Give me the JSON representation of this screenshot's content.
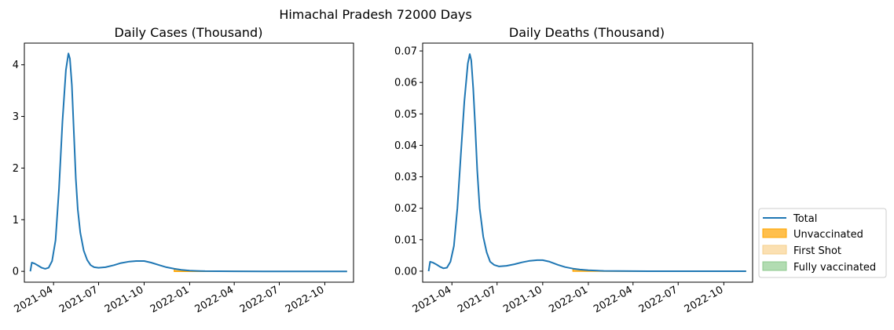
{
  "figure": {
    "suptitle": "Himachal Pradesh 72000 Days"
  },
  "legend": {
    "placement": "right-lower",
    "items": [
      {
        "label": "Total",
        "kind": "line",
        "color": "#1f77b4"
      },
      {
        "label": "Unvaccinated",
        "kind": "area",
        "color": "#ffbf4c"
      },
      {
        "label": "First Shot",
        "kind": "area",
        "color": "#fbe0b2"
      },
      {
        "label": "Fully vaccinated",
        "kind": "area",
        "color": "#b2dcb2"
      }
    ]
  },
  "chart_data": [
    {
      "type": "line",
      "title": "Daily Cases (Thousand)",
      "xlabel": "",
      "ylabel": "",
      "x_type": "date",
      "xlim": [
        "2021-02-01",
        "2022-11-28"
      ],
      "ylim": [
        -0.21,
        4.42
      ],
      "x_ticks": [
        "2021-04",
        "2021-07",
        "2021-10",
        "2022-01",
        "2022-04",
        "2022-07",
        "2022-10"
      ],
      "y_ticks": [
        0,
        1,
        2,
        3,
        4
      ],
      "series": [
        {
          "name": "Total",
          "color": "#1f77b4",
          "points": [
            [
              "2021-02-13",
              0.0
            ],
            [
              "2021-02-16",
              0.17
            ],
            [
              "2021-02-22",
              0.15
            ],
            [
              "2021-03-01",
              0.11
            ],
            [
              "2021-03-08",
              0.07
            ],
            [
              "2021-03-15",
              0.05
            ],
            [
              "2021-03-22",
              0.07
            ],
            [
              "2021-03-29",
              0.2
            ],
            [
              "2021-04-05",
              0.6
            ],
            [
              "2021-04-12",
              1.6
            ],
            [
              "2021-04-19",
              2.9
            ],
            [
              "2021-04-26",
              3.9
            ],
            [
              "2021-05-01",
              4.22
            ],
            [
              "2021-05-04",
              4.12
            ],
            [
              "2021-05-08",
              3.6
            ],
            [
              "2021-05-12",
              2.7
            ],
            [
              "2021-05-16",
              1.8
            ],
            [
              "2021-05-20",
              1.2
            ],
            [
              "2021-05-25",
              0.75
            ],
            [
              "2021-06-01",
              0.4
            ],
            [
              "2021-06-08",
              0.22
            ],
            [
              "2021-06-15",
              0.12
            ],
            [
              "2021-06-22",
              0.08
            ],
            [
              "2021-07-01",
              0.07
            ],
            [
              "2021-07-15",
              0.08
            ],
            [
              "2021-08-01",
              0.12
            ],
            [
              "2021-08-15",
              0.16
            ],
            [
              "2021-09-01",
              0.19
            ],
            [
              "2021-09-15",
              0.2
            ],
            [
              "2021-10-01",
              0.2
            ],
            [
              "2021-10-15",
              0.17
            ],
            [
              "2021-11-01",
              0.12
            ],
            [
              "2021-11-15",
              0.08
            ],
            [
              "2021-12-01",
              0.05
            ],
            [
              "2021-12-15",
              0.03
            ],
            [
              "2022-01-01",
              0.015
            ],
            [
              "2022-01-15",
              0.008
            ],
            [
              "2022-02-01",
              0.004
            ],
            [
              "2022-03-01",
              0.002
            ],
            [
              "2022-04-01",
              0.001
            ],
            [
              "2022-06-01",
              0.0
            ],
            [
              "2022-08-01",
              0.0
            ],
            [
              "2022-10-01",
              0.0
            ],
            [
              "2022-11-15",
              0.0
            ]
          ]
        },
        {
          "name": "Unvaccinated",
          "fill": true,
          "color": "#ffbf4c",
          "points": [
            [
              "2021-12-01",
              0.05
            ],
            [
              "2021-12-15",
              0.03
            ],
            [
              "2022-01-01",
              0.015
            ],
            [
              "2022-01-15",
              0.008
            ],
            [
              "2022-02-01",
              0.004
            ],
            [
              "2022-03-01",
              0.002
            ],
            [
              "2022-04-01",
              0.001
            ],
            [
              "2022-06-01",
              0.0
            ],
            [
              "2022-08-01",
              0.0
            ],
            [
              "2022-10-01",
              0.0
            ],
            [
              "2022-11-15",
              0.0
            ]
          ]
        }
      ]
    },
    {
      "type": "line",
      "title": "Daily Deaths (Thousand)",
      "xlabel": "",
      "ylabel": "",
      "x_type": "date",
      "xlim": [
        "2021-02-01",
        "2022-11-28"
      ],
      "ylim": [
        -0.0035,
        0.0725
      ],
      "x_ticks": [
        "2021-04",
        "2021-07",
        "2021-10",
        "2022-01",
        "2022-04",
        "2022-07",
        "2022-10"
      ],
      "y_ticks": [
        0.0,
        0.01,
        0.02,
        0.03,
        0.04,
        0.05,
        0.06,
        0.07
      ],
      "y_tick_labels": [
        "0.00",
        "0.01",
        "0.02",
        "0.03",
        "0.04",
        "0.05",
        "0.06",
        "0.07"
      ],
      "series": [
        {
          "name": "Total",
          "color": "#1f77b4",
          "points": [
            [
              "2021-02-13",
              0.0
            ],
            [
              "2021-02-16",
              0.003
            ],
            [
              "2021-02-22",
              0.0027
            ],
            [
              "2021-03-01",
              0.0021
            ],
            [
              "2021-03-08",
              0.0014
            ],
            [
              "2021-03-15",
              0.0009
            ],
            [
              "2021-03-22",
              0.0011
            ],
            [
              "2021-03-29",
              0.003
            ],
            [
              "2021-04-05",
              0.008
            ],
            [
              "2021-04-12",
              0.02
            ],
            [
              "2021-04-19",
              0.037
            ],
            [
              "2021-04-26",
              0.054
            ],
            [
              "2021-05-03",
              0.066
            ],
            [
              "2021-05-07",
              0.069
            ],
            [
              "2021-05-10",
              0.067
            ],
            [
              "2021-05-14",
              0.058
            ],
            [
              "2021-05-18",
              0.046
            ],
            [
              "2021-05-22",
              0.032
            ],
            [
              "2021-05-27",
              0.02
            ],
            [
              "2021-06-03",
              0.011
            ],
            [
              "2021-06-10",
              0.006
            ],
            [
              "2021-06-17",
              0.003
            ],
            [
              "2021-06-25",
              0.002
            ],
            [
              "2021-07-05",
              0.0015
            ],
            [
              "2021-07-20",
              0.0017
            ],
            [
              "2021-08-05",
              0.0022
            ],
            [
              "2021-08-20",
              0.0028
            ],
            [
              "2021-09-05",
              0.0033
            ],
            [
              "2021-09-20",
              0.0035
            ],
            [
              "2021-10-01",
              0.0035
            ],
            [
              "2021-10-15",
              0.003
            ],
            [
              "2021-11-01",
              0.002
            ],
            [
              "2021-11-15",
              0.0013
            ],
            [
              "2021-12-01",
              0.0008
            ],
            [
              "2021-12-15",
              0.0005
            ],
            [
              "2022-01-01",
              0.0003
            ],
            [
              "2022-02-01",
              0.0001
            ],
            [
              "2022-03-01",
              5e-05
            ],
            [
              "2022-05-01",
              0.0
            ],
            [
              "2022-08-01",
              0.0
            ],
            [
              "2022-11-15",
              0.0
            ]
          ]
        },
        {
          "name": "Unvaccinated",
          "fill": true,
          "color": "#ffbf4c",
          "points": [
            [
              "2021-12-01",
              0.0008
            ],
            [
              "2021-12-15",
              0.0005
            ],
            [
              "2022-01-01",
              0.0003
            ],
            [
              "2022-02-01",
              0.0001
            ],
            [
              "2022-03-01",
              5e-05
            ],
            [
              "2022-05-01",
              0.0
            ],
            [
              "2022-08-01",
              0.0
            ],
            [
              "2022-11-15",
              0.0
            ]
          ]
        }
      ]
    }
  ]
}
